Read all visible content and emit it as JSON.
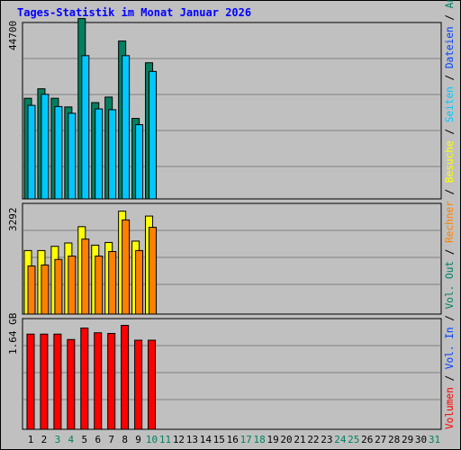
{
  "title": "Tages-Statistik im Monat Januar 2026",
  "colors": {
    "background": "#c0c0c0",
    "anfragen": "#008060",
    "dateien": "#0040ff",
    "seiten": "#00c8ff",
    "besuche": "#ffff00",
    "rechner": "#ff8000",
    "volumen": "#ff0000",
    "title": "#0000ff"
  },
  "legend": {
    "right": [
      {
        "text": "Volumen",
        "color": "#ff0000"
      },
      {
        "text": " / ",
        "color": "#000000"
      },
      {
        "text": "Vol. In",
        "color": "#0040ff"
      },
      {
        "text": " / ",
        "color": "#000000"
      },
      {
        "text": "Vol. Out",
        "color": "#008060"
      },
      {
        "text": " / ",
        "color": "#000000"
      },
      {
        "text": "Rechner",
        "color": "#ff8000"
      },
      {
        "text": " / ",
        "color": "#000000"
      },
      {
        "text": "Besuche",
        "color": "#ffff00"
      },
      {
        "text": " / ",
        "color": "#000000"
      },
      {
        "text": "Seiten",
        "color": "#00c8ff"
      },
      {
        "text": " / ",
        "color": "#000000"
      },
      {
        "text": "Dateien",
        "color": "#0040ff"
      },
      {
        "text": " / ",
        "color": "#000000"
      },
      {
        "text": "Anfragen",
        "color": "#008060"
      }
    ]
  },
  "chart_data": [
    {
      "type": "bar",
      "panel": "top",
      "ymax_label": "44700",
      "ylim": [
        0,
        44700
      ],
      "categories": [
        "1",
        "2",
        "3",
        "4",
        "5",
        "6",
        "7",
        "8",
        "9",
        "10"
      ],
      "series": [
        {
          "name": "Anfragen",
          "values": [
            25500,
            27900,
            25500,
            23300,
            45700,
            24400,
            25800,
            40000,
            20400,
            34500
          ]
        },
        {
          "name": "Dateien",
          "values": [
            16000,
            16000,
            15500,
            15000,
            36000,
            15500,
            16000,
            31000,
            14000,
            27000
          ]
        },
        {
          "name": "Seiten",
          "values": [
            23700,
            26500,
            23400,
            21700,
            36300,
            22800,
            22600,
            36300,
            18800,
            32300
          ]
        }
      ]
    },
    {
      "type": "bar",
      "panel": "middle",
      "ymax_label": "3292",
      "ylim": [
        0,
        3292
      ],
      "categories": [
        "1",
        "2",
        "3",
        "4",
        "5",
        "6",
        "7",
        "8",
        "9",
        "10"
      ],
      "series": [
        {
          "name": "Besuche",
          "values": [
            1890,
            1890,
            2015,
            2115,
            2600,
            2050,
            2130,
            3060,
            2170,
            2915
          ]
        },
        {
          "name": "Rechner",
          "values": [
            1430,
            1460,
            1625,
            1725,
            2230,
            1725,
            1860,
            2800,
            1890,
            2580
          ]
        }
      ]
    },
    {
      "type": "bar",
      "panel": "bottom",
      "ymax_label": "1.64 GB",
      "ylim": [
        0,
        1.64
      ],
      "categories": [
        "1",
        "2",
        "3",
        "4",
        "5",
        "6",
        "7",
        "8",
        "9",
        "10"
      ],
      "series": [
        {
          "name": "Volumen",
          "values": [
            1.41,
            1.41,
            1.41,
            1.33,
            1.5,
            1.43,
            1.42,
            1.54,
            1.32,
            1.32
          ]
        }
      ]
    }
  ],
  "xaxis": {
    "labels": [
      {
        "text": "1",
        "color": "#000000"
      },
      {
        "text": "2",
        "color": "#000000"
      },
      {
        "text": "3",
        "color": "#008060"
      },
      {
        "text": "4",
        "color": "#008060"
      },
      {
        "text": "5",
        "color": "#000000"
      },
      {
        "text": "6",
        "color": "#000000"
      },
      {
        "text": "7",
        "color": "#000000"
      },
      {
        "text": "8",
        "color": "#000000"
      },
      {
        "text": "9",
        "color": "#000000"
      },
      {
        "text": "10",
        "color": "#008060"
      },
      {
        "text": "11",
        "color": "#008060"
      },
      {
        "text": "12",
        "color": "#000000"
      },
      {
        "text": "13",
        "color": "#000000"
      },
      {
        "text": "14",
        "color": "#000000"
      },
      {
        "text": "15",
        "color": "#000000"
      },
      {
        "text": "16",
        "color": "#000000"
      },
      {
        "text": "17",
        "color": "#008060"
      },
      {
        "text": "18",
        "color": "#008060"
      },
      {
        "text": "19",
        "color": "#000000"
      },
      {
        "text": "20",
        "color": "#000000"
      },
      {
        "text": "21",
        "color": "#000000"
      },
      {
        "text": "22",
        "color": "#000000"
      },
      {
        "text": "23",
        "color": "#000000"
      },
      {
        "text": "24",
        "color": "#008060"
      },
      {
        "text": "25",
        "color": "#008060"
      },
      {
        "text": "26",
        "color": "#000000"
      },
      {
        "text": "27",
        "color": "#000000"
      },
      {
        "text": "28",
        "color": "#000000"
      },
      {
        "text": "29",
        "color": "#000000"
      },
      {
        "text": "30",
        "color": "#000000"
      },
      {
        "text": "31",
        "color": "#008060"
      }
    ]
  }
}
